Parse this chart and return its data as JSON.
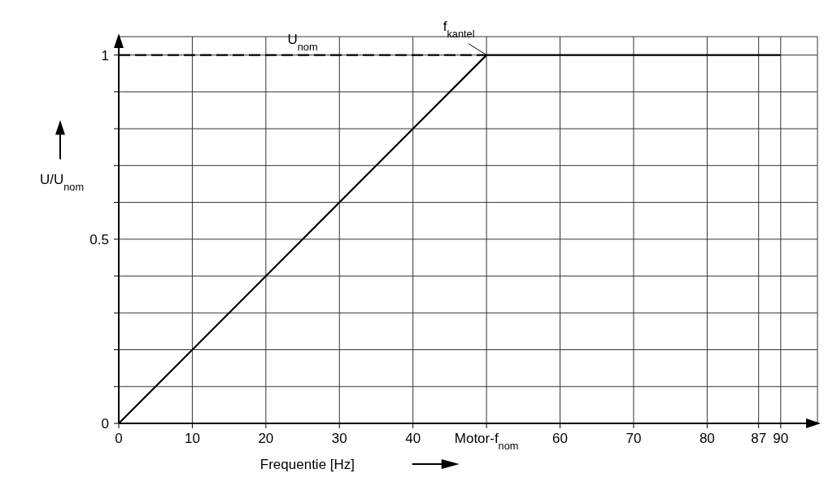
{
  "chart_data": {
    "type": "line",
    "xlabel": "Frequentie [Hz]",
    "ylabel": "U/U$_{nom}$",
    "series": [
      {
        "name": "U$_{nom}$",
        "color": "#000000",
        "line_style": "dashed",
        "x": [
          0,
          50
        ],
        "values": [
          1,
          1
        ]
      },
      {
        "color": "#000000",
        "line_style": "solid",
        "x": [
          0,
          50,
          90
        ],
        "values": [
          0,
          1,
          1
        ]
      }
    ],
    "xlim": [
      0,
      95
    ],
    "xticks": [
      0,
      10,
      20,
      30,
      40,
      {
        "value": 50,
        "label": "Motor-f$_{nom}$"
      },
      60,
      70,
      80,
      87,
      90
    ],
    "ylim": [
      0,
      1.05
    ],
    "yticks": [
      0,
      {
        "value": 0.1,
        "label": null
      },
      {
        "value": 0.2,
        "label": null
      },
      {
        "value": 0.3,
        "label": null
      },
      {
        "value": 0.4,
        "label": null
      },
      0.5,
      {
        "value": 0.6,
        "label": null
      },
      {
        "value": 0.7,
        "label": null
      },
      {
        "value": 0.8,
        "label": null
      },
      {
        "value": 0.9,
        "label": null
      },
      1
    ],
    "annotations": [
      {
        "text": "f$_{kantel}$",
        "x": 50,
        "y": 1
      }
    ],
    "grid": true
  }
}
